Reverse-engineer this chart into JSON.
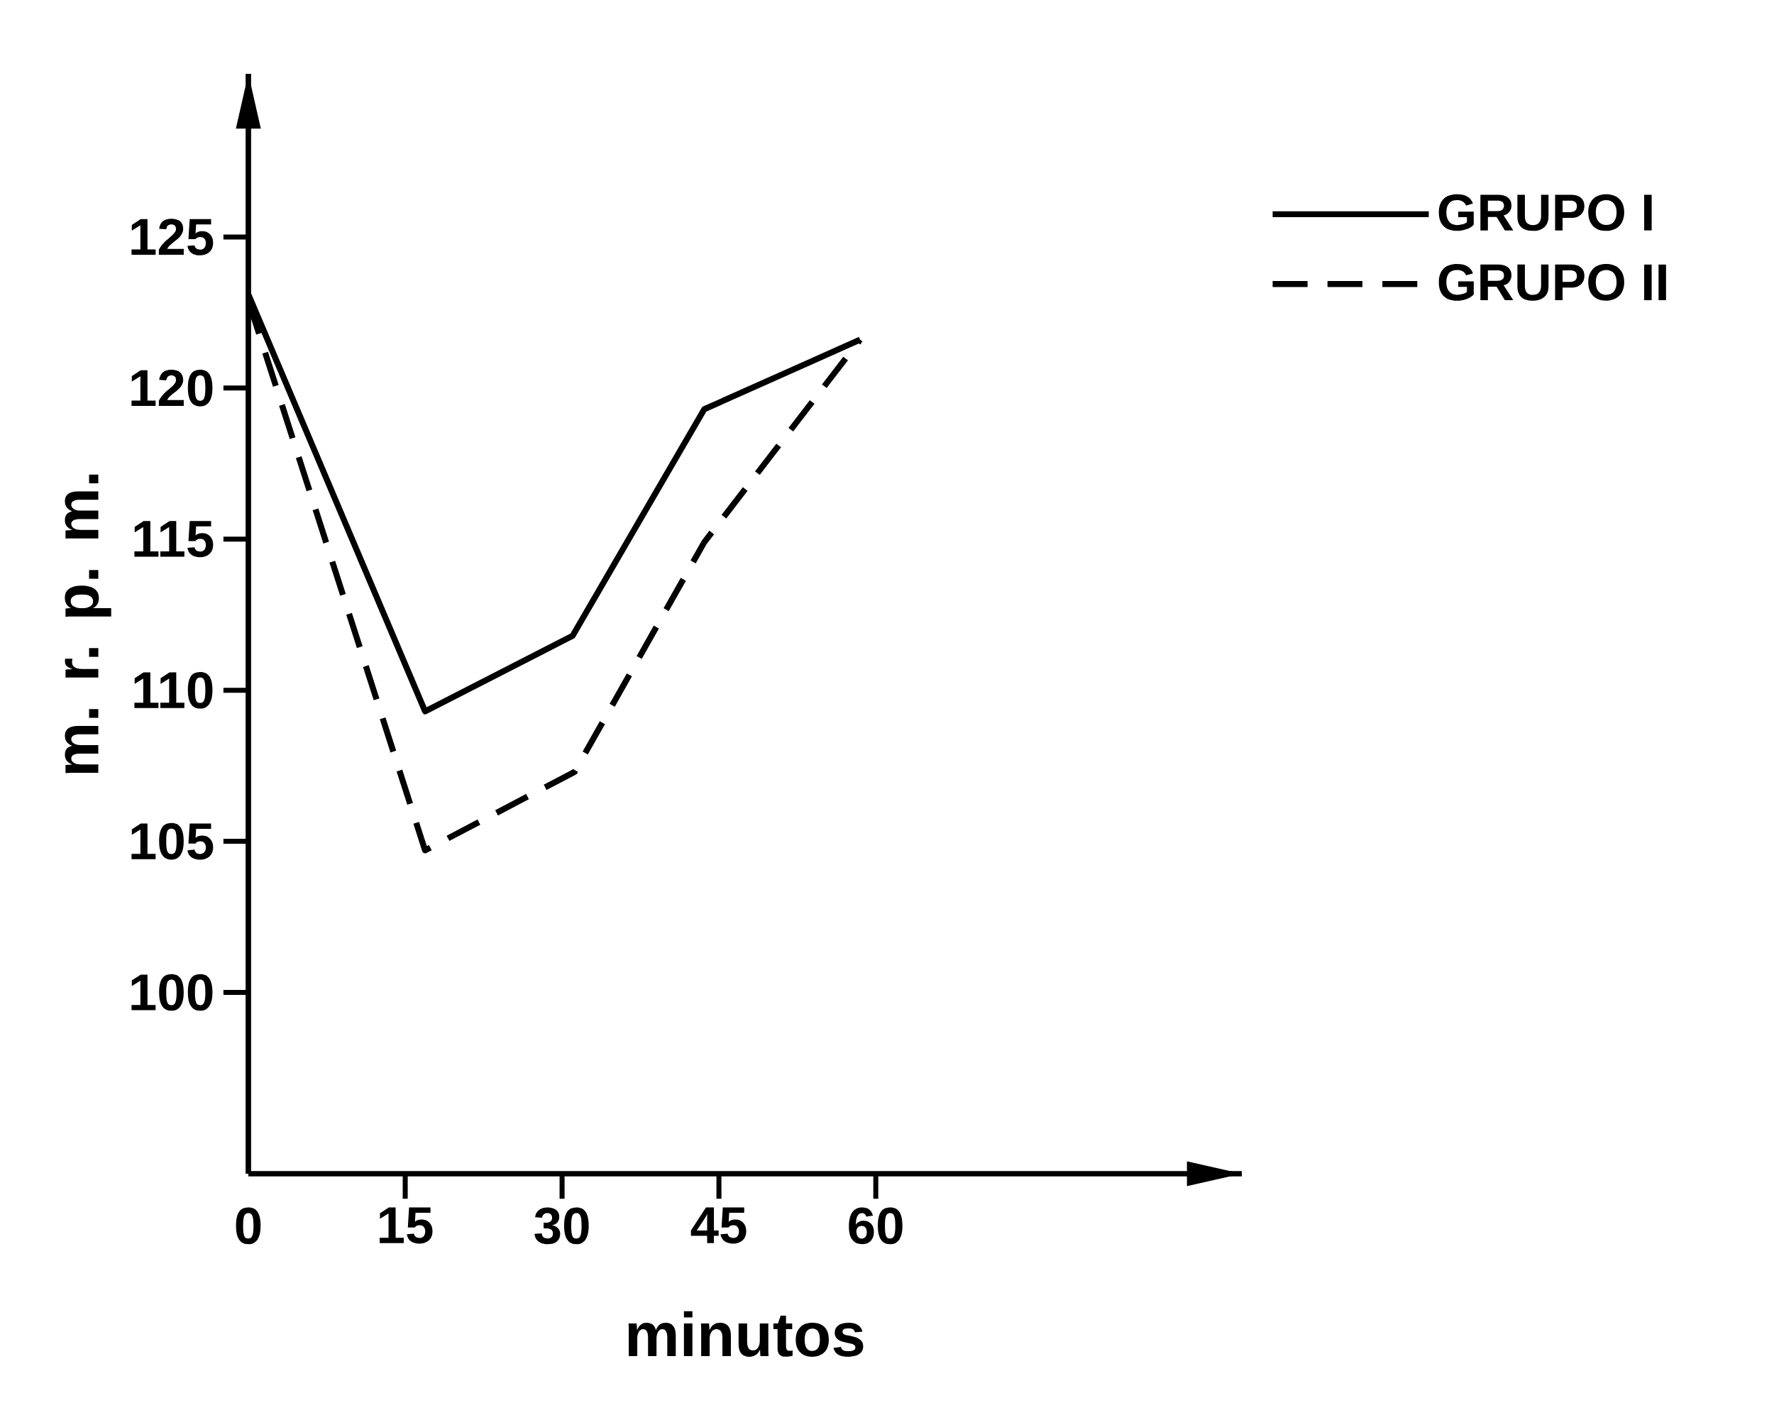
{
  "chart_data": {
    "type": "line",
    "xlabel": "minutos",
    "ylabel": "m. r. p. m.",
    "series": [
      {
        "name": "GRUPO I",
        "color": "#000000",
        "line_style": "solid",
        "x": [
          0,
          16.9,
          31,
          43.6,
          58.5
        ],
        "values": [
          123.1,
          109.3,
          111.8,
          119.3,
          121.6
        ]
      },
      {
        "name": "GRUPO II",
        "color": "#000000",
        "line_style": "dashed",
        "x": [
          0,
          16.9,
          31.2,
          43.6,
          58.5
        ],
        "values": [
          122.9,
          104.7,
          107.3,
          114.9,
          121.6
        ]
      }
    ],
    "xlim": [
      0,
      95
    ],
    "ylim": [
      94,
      130.4
    ],
    "xticks": [
      {
        "value": 0,
        "label": "0"
      },
      15,
      30,
      45,
      60
    ],
    "yticks": [
      100,
      105,
      110,
      115,
      120,
      125
    ],
    "grid": false,
    "legend": "top right",
    "marker": "none"
  }
}
